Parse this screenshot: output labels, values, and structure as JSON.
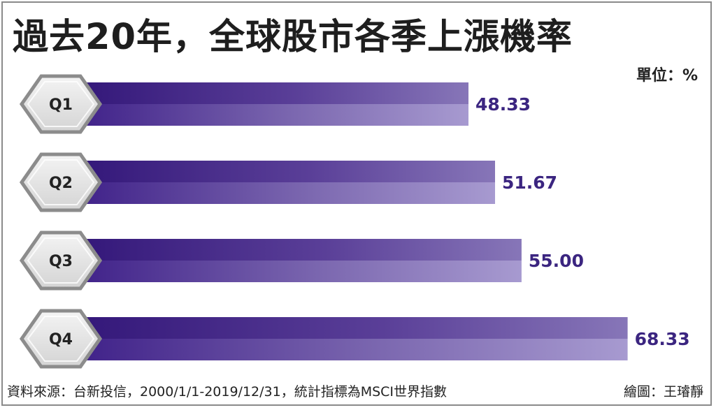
{
  "title": "過去20年，全球股市各季上漲機率",
  "unit_label": "單位：%",
  "footer": {
    "source": "資料來源：台新投信，2000/1/1-2019/12/31，統計指標為MSCI世界指數",
    "credit": "繪圖：王璿靜"
  },
  "colors": {
    "bar_dark": "#3a1d80",
    "bar_light": "#a79ad0",
    "value_text": "#3b2580",
    "hex_fill": "#e6e6e6",
    "hex_stroke": "#8c8c8c",
    "label_text": "#222222"
  },
  "chart_data": {
    "type": "bar",
    "orientation": "horizontal",
    "title": "過去20年，全球股市各季上漲機率",
    "unit": "%",
    "categories": [
      "Q1",
      "Q2",
      "Q3",
      "Q4"
    ],
    "values": [
      48.33,
      51.67,
      55.0,
      68.33
    ],
    "value_labels": [
      "48.33",
      "51.67",
      "55.00",
      "68.33"
    ],
    "xlim": [
      0,
      100
    ],
    "grid": false,
    "legend": "none"
  }
}
